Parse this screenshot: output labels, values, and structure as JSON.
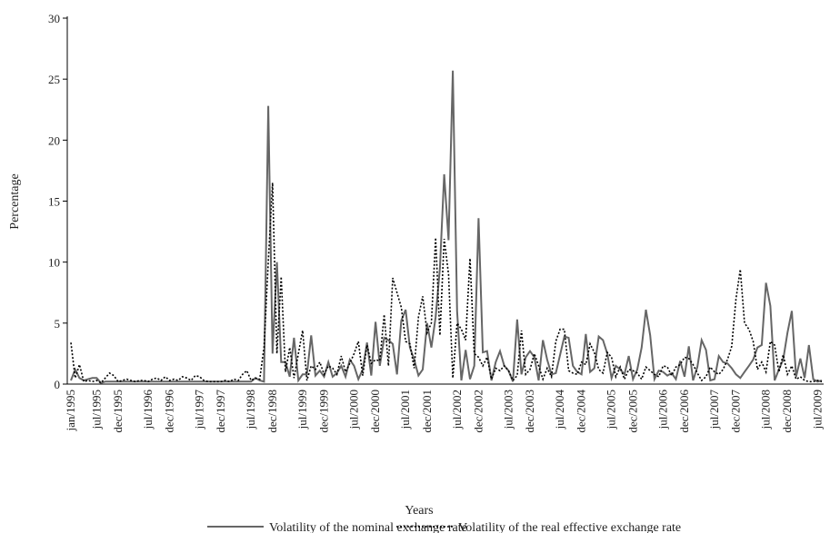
{
  "chart_data": {
    "type": "line",
    "xlabel": "Years",
    "ylabel": "Percentage",
    "ylim": [
      0,
      30
    ],
    "yticks": [
      0,
      5,
      10,
      15,
      20,
      25,
      30
    ],
    "categories": [
      "jan/1995",
      null,
      null,
      null,
      null,
      null,
      "jul/1995",
      null,
      null,
      null,
      null,
      "dec/1995",
      null,
      null,
      null,
      null,
      null,
      null,
      "jul/1996",
      null,
      null,
      null,
      null,
      "dec/1996",
      null,
      null,
      null,
      null,
      null,
      null,
      "jul/1997",
      null,
      null,
      null,
      null,
      "dec/1997",
      null,
      null,
      null,
      null,
      null,
      null,
      "jul/1998",
      null,
      null,
      null,
      null,
      "dec/1998",
      null,
      null,
      null,
      null,
      null,
      null,
      "jul/1999",
      null,
      null,
      null,
      null,
      "dec/1999",
      null,
      null,
      null,
      null,
      null,
      null,
      "jul/2000",
      null,
      null,
      null,
      null,
      "dec/2000",
      null,
      null,
      null,
      null,
      null,
      null,
      "jul/2001",
      null,
      null,
      null,
      null,
      "dec/2001",
      null,
      null,
      null,
      null,
      null,
      null,
      "jul/2002",
      null,
      null,
      null,
      null,
      "dec/2002",
      null,
      null,
      null,
      null,
      null,
      null,
      "jul/2003",
      null,
      null,
      null,
      null,
      "dec/2003",
      null,
      null,
      null,
      null,
      null,
      null,
      "jul/2004",
      null,
      null,
      null,
      null,
      "dec/2004",
      null,
      null,
      null,
      null,
      null,
      null,
      "jul/2005",
      null,
      null,
      null,
      null,
      "dec/2005",
      null,
      null,
      null,
      null,
      null,
      null,
      "jul/2006",
      null,
      null,
      null,
      null,
      "dec/2006",
      null,
      null,
      null,
      null,
      null,
      null,
      "jul/2007",
      null,
      null,
      null,
      null,
      "dec/2007",
      null,
      null,
      null,
      null,
      null,
      null,
      "jul/2008",
      null,
      null,
      null,
      null,
      "dec/2008",
      null,
      null,
      null,
      null,
      null,
      null,
      "jul/2009",
      null
    ],
    "series": [
      {
        "name": "Volatility of the nominal exchange rate",
        "color": "#666666",
        "style": "solid",
        "values": [
          0.3,
          1.2,
          0.5,
          0.3,
          0.4,
          0.5,
          0.5,
          0.1,
          0.2,
          0.2,
          0.2,
          0.2,
          0.2,
          0.2,
          0.2,
          0.2,
          0.2,
          0.2,
          0.2,
          0.2,
          0.2,
          0.2,
          0.2,
          0.2,
          0.2,
          0.2,
          0.2,
          0.2,
          0.2,
          0.2,
          0.2,
          0.2,
          0.2,
          0.2,
          0.2,
          0.2,
          0.2,
          0.2,
          0.2,
          0.2,
          0.2,
          0.2,
          0.2,
          0.5,
          0.3,
          0.2,
          22.8,
          2.5,
          10,
          1.8,
          1.8,
          0.6,
          3.8,
          0.3,
          0.8,
          0.8,
          4,
          0.7,
          1.1,
          0.6,
          1.8,
          0.6,
          0.9,
          1.5,
          0.6,
          2,
          1.5,
          0.4,
          1.2,
          3.4,
          0.7,
          5.1,
          1.5,
          3.8,
          3.6,
          3.3,
          0.8,
          5.2,
          6.1,
          3,
          2,
          0.7,
          1.2,
          5,
          3,
          5.5,
          9.5,
          17.2,
          11.8,
          25.7,
          6,
          0.3,
          2.8,
          0.4,
          1.5,
          13.6,
          2.6,
          2.7,
          0.3,
          1.8,
          2.7,
          1.5,
          1.1,
          0.2,
          5.3,
          0.8,
          2.2,
          2.7,
          2.2,
          0.3,
          3.6,
          2,
          0.8,
          0.9,
          2.4,
          3.9,
          3.8,
          1.5,
          1,
          0.8,
          4.1,
          1,
          1.3,
          3.9,
          3.6,
          2.5,
          0.5,
          1.5,
          1.2,
          0.8,
          2.3,
          0.4,
          1.2,
          3,
          6.1,
          4,
          0.4,
          1.1,
          1,
          0.7,
          0.9,
          0.4,
          1.9,
          0.6,
          3.1,
          0.3,
          1.4,
          3.6,
          2.8,
          0.3,
          0.4,
          2.3,
          1.8,
          1.7,
          1.3,
          0.8,
          0.5,
          1,
          1.5,
          2,
          3,
          3.2,
          8.3,
          6.4,
          0.3,
          1.2,
          2,
          4.2,
          6,
          0.6,
          2.1,
          0.5,
          3.2,
          0.4,
          0.2,
          0.3
        ]
      },
      {
        "name": "Volatility of the real effective exchange rate",
        "color": "#000000",
        "style": "dotted",
        "values": [
          3.4,
          0.5,
          1.6,
          0.2,
          0.3,
          0.2,
          0.3,
          0.1,
          0.5,
          0.9,
          0.7,
          0.2,
          0.3,
          0.4,
          0.3,
          0.2,
          0.3,
          0.3,
          0.2,
          0.4,
          0.5,
          0.3,
          0.6,
          0.3,
          0.4,
          0.3,
          0.6,
          0.5,
          0.3,
          0.7,
          0.6,
          0.3,
          0.2,
          0.2,
          0.2,
          0.2,
          0.3,
          0.2,
          0.4,
          0.3,
          0.8,
          1.1,
          0.3,
          0.5,
          0.4,
          3,
          10,
          16.5,
          2.5,
          8.8,
          1,
          3,
          0.5,
          2.5,
          4.4,
          0.3,
          1.5,
          1.2,
          1.8,
          0.8,
          1.5,
          1.3,
          0.8,
          2.3,
          1,
          1.7,
          2.5,
          3.5,
          0.7,
          3.2,
          1.7,
          2,
          1.9,
          5.7,
          1.5,
          8.7,
          7.5,
          6.3,
          3.5,
          3.3,
          1.3,
          5.5,
          7.2,
          4.2,
          5,
          12,
          4,
          11.9,
          9,
          0.5,
          5,
          4.5,
          3.6,
          10.3,
          2.5,
          2.2,
          1.5,
          2.2,
          0.4,
          1.3,
          1.1,
          1.5,
          1.1,
          0.3,
          0.7,
          4.4,
          0.8,
          1.2,
          2.5,
          1.5,
          0.4,
          1.3,
          0.6,
          3.5,
          4.5,
          4.5,
          1.1,
          0.9,
          0.8,
          1.8,
          1.6,
          3.3,
          2.6,
          1.2,
          0.9,
          2.6,
          2.2,
          0.6,
          1.4,
          0.4,
          1.2,
          1.1,
          0.9,
          0.4,
          1.4,
          1.1,
          0.8,
          0.6,
          1.5,
          1.4,
          0.7,
          1.4,
          1.6,
          2.2,
          2.1,
          1.6,
          0.9,
          0.3,
          0.6,
          1.4,
          1,
          0.8,
          1.2,
          2,
          3.1,
          7,
          9.4,
          5,
          4.5,
          3.5,
          1.2,
          1.8,
          1,
          3.5,
          3.2,
          1,
          2.4,
          0.8,
          1.5,
          0.4,
          0.6,
          0.3,
          0.2,
          0.2,
          0.3,
          0.2
        ]
      }
    ]
  }
}
